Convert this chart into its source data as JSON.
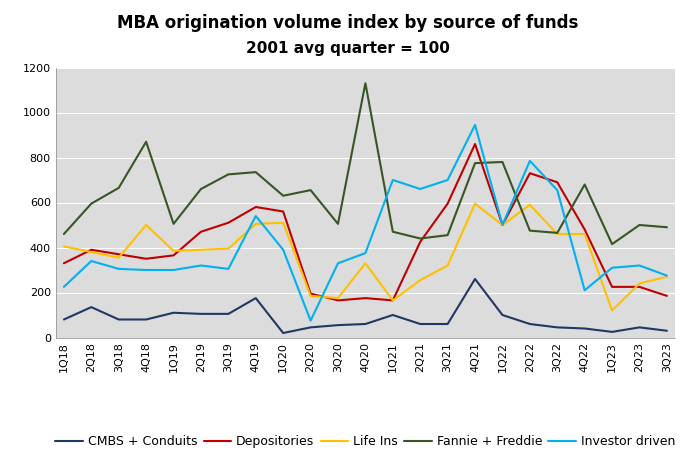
{
  "title": "MBA origination volume index by source of funds",
  "subtitle": "2001 avg quarter = 100",
  "ylim": [
    0,
    1200
  ],
  "yticks": [
    0,
    200,
    400,
    600,
    800,
    1000,
    1200
  ],
  "categories": [
    "1Q18",
    "2Q18",
    "3Q18",
    "4Q18",
    "1Q19",
    "2Q19",
    "3Q19",
    "4Q19",
    "1Q20",
    "2Q20",
    "3Q20",
    "4Q20",
    "1Q21",
    "2Q21",
    "3Q21",
    "4Q21",
    "1Q22",
    "2Q22",
    "3Q22",
    "4Q22",
    "1Q23",
    "2Q23",
    "3Q23"
  ],
  "series": {
    "CMBS + Conduits": {
      "color": "#1F3864",
      "values": [
        80,
        135,
        80,
        80,
        110,
        105,
        105,
        175,
        20,
        45,
        55,
        60,
        100,
        60,
        60,
        260,
        100,
        60,
        45,
        40,
        25,
        45,
        30
      ]
    },
    "Depositories": {
      "color": "#C00000",
      "values": [
        330,
        390,
        370,
        350,
        365,
        470,
        510,
        580,
        560,
        195,
        165,
        175,
        165,
        425,
        595,
        860,
        500,
        730,
        690,
        480,
        225,
        225,
        185
      ]
    },
    "Life Ins": {
      "color": "#FFC000",
      "values": [
        405,
        380,
        355,
        500,
        385,
        390,
        395,
        505,
        510,
        185,
        175,
        330,
        165,
        255,
        320,
        595,
        500,
        590,
        460,
        460,
        120,
        240,
        270
      ]
    },
    "Fannie + Freddie": {
      "color": "#375623",
      "values": [
        460,
        595,
        665,
        870,
        505,
        660,
        725,
        735,
        630,
        655,
        505,
        1130,
        470,
        440,
        455,
        775,
        780,
        475,
        465,
        680,
        415,
        500,
        490
      ]
    },
    "Investor driven": {
      "color": "#00B0F0",
      "values": [
        225,
        340,
        305,
        300,
        300,
        320,
        305,
        540,
        390,
        75,
        330,
        375,
        700,
        660,
        700,
        945,
        500,
        785,
        655,
        210,
        310,
        320,
        275
      ]
    }
  },
  "legend_order": [
    "CMBS + Conduits",
    "Depositories",
    "Life Ins",
    "Fannie + Freddie",
    "Investor driven"
  ],
  "figure_bg": "#FFFFFF",
  "plot_bg": "#DCDCDC",
  "grid_color": "#FFFFFF",
  "title_fontsize": 12,
  "tick_fontsize": 8,
  "legend_fontsize": 9
}
